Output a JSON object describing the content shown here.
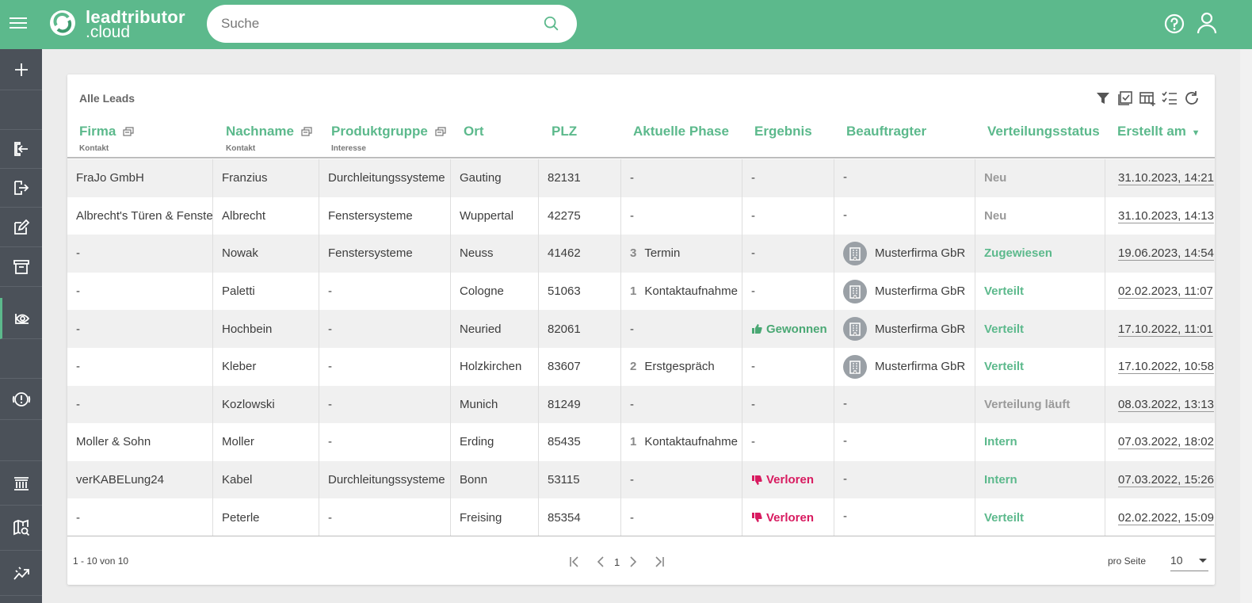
{
  "header": {
    "logo_name": "leadtributor",
    "logo_sub": ".cloud",
    "search_placeholder": "Suche"
  },
  "sidebar": {
    "items": [
      {
        "icon": "plus-icon"
      },
      {
        "icon": "login-icon"
      },
      {
        "icon": "logout-icon"
      },
      {
        "icon": "edit-icon"
      },
      {
        "icon": "archive-icon"
      },
      {
        "icon": "eye-icon",
        "active": true
      },
      {
        "icon": "alert-icon"
      },
      {
        "icon": "bank-icon"
      },
      {
        "icon": "map-search-icon"
      },
      {
        "icon": "chart-line-icon"
      }
    ]
  },
  "table": {
    "title": "Alle Leads",
    "columns": [
      {
        "label": "Firma",
        "sub": "Kontakt"
      },
      {
        "label": "Nachname",
        "sub": "Kontakt"
      },
      {
        "label": "Produktgruppe",
        "sub": "Interesse"
      },
      {
        "label": "Ort"
      },
      {
        "label": "PLZ"
      },
      {
        "label": "Aktuelle Phase"
      },
      {
        "label": "Ergebnis"
      },
      {
        "label": "Beauftragter"
      },
      {
        "label": "Verteilungsstatus"
      },
      {
        "label": "Erstellt am"
      }
    ],
    "rows": [
      {
        "firma": "FraJo GmbH",
        "nachname": "Franzius",
        "produkt": "Durchleitungssysteme",
        "ort": "Gauting",
        "plz": "82131",
        "phase_num": "",
        "phase": "-",
        "ergebnis": "-",
        "ergebnis_type": "none",
        "beauftragter": "-",
        "status": "Neu",
        "status_color": "gray",
        "erstellt": "31.10.2023, 14:21"
      },
      {
        "firma": "Albrecht's Türen & Fenster",
        "nachname": "Albrecht",
        "produkt": "Fenstersysteme",
        "ort": "Wuppertal",
        "plz": "42275",
        "phase_num": "",
        "phase": "-",
        "ergebnis": "-",
        "ergebnis_type": "none",
        "beauftragter": "-",
        "status": "Neu",
        "status_color": "gray",
        "erstellt": "31.10.2023, 14:13"
      },
      {
        "firma": "-",
        "nachname": "Nowak",
        "produkt": "Fenstersysteme",
        "ort": "Neuss",
        "plz": "41462",
        "phase_num": "3",
        "phase": "Termin",
        "ergebnis": "-",
        "ergebnis_type": "none",
        "beauftragter": "Musterfirma GbR",
        "status": "Zugewiesen",
        "status_color": "green",
        "erstellt": "19.06.2023, 14:54"
      },
      {
        "firma": "-",
        "nachname": "Paletti",
        "produkt": "-",
        "ort": "Cologne",
        "plz": "51063",
        "phase_num": "1",
        "phase": "Kontaktaufnahme",
        "ergebnis": "-",
        "ergebnis_type": "none",
        "beauftragter": "Musterfirma GbR",
        "status": "Verteilt",
        "status_color": "green",
        "erstellt": "02.02.2023, 11:07"
      },
      {
        "firma": "-",
        "nachname": "Hochbein",
        "produkt": "-",
        "ort": "Neuried",
        "plz": "82061",
        "phase_num": "",
        "phase": "-",
        "ergebnis": "Gewonnen",
        "ergebnis_type": "won",
        "beauftragter": "Musterfirma GbR",
        "status": "Verteilt",
        "status_color": "green",
        "erstellt": "17.10.2022, 11:01"
      },
      {
        "firma": "-",
        "nachname": "Kleber",
        "produkt": "-",
        "ort": "Holzkirchen",
        "plz": "83607",
        "phase_num": "2",
        "phase": "Erstgespräch",
        "ergebnis": "-",
        "ergebnis_type": "none",
        "beauftragter": "Musterfirma GbR",
        "status": "Verteilt",
        "status_color": "green",
        "erstellt": "17.10.2022, 10:58"
      },
      {
        "firma": "-",
        "nachname": "Kozlowski",
        "produkt": "-",
        "ort": "Munich",
        "plz": "81249",
        "phase_num": "",
        "phase": "-",
        "ergebnis": "-",
        "ergebnis_type": "none",
        "beauftragter": "-",
        "status": "Verteilung läuft",
        "status_color": "gray",
        "erstellt": "08.03.2022, 13:13"
      },
      {
        "firma": "Moller & Sohn",
        "nachname": "Moller",
        "produkt": "-",
        "ort": "Erding",
        "plz": "85435",
        "phase_num": "1",
        "phase": "Kontaktaufnahme",
        "ergebnis": "-",
        "ergebnis_type": "none",
        "beauftragter": "-",
        "status": "Intern",
        "status_color": "green",
        "erstellt": "07.03.2022, 18:02"
      },
      {
        "firma": "verKABELung24",
        "nachname": "Kabel",
        "produkt": "Durchleitungssysteme",
        "ort": "Bonn",
        "plz": "53115",
        "phase_num": "",
        "phase": "-",
        "ergebnis": "Verloren",
        "ergebnis_type": "lost",
        "beauftragter": "-",
        "status": "Intern",
        "status_color": "green",
        "erstellt": "07.03.2022, 15:26"
      },
      {
        "firma": "-",
        "nachname": "Peterle",
        "produkt": "-",
        "ort": "Freising",
        "plz": "85354",
        "phase_num": "",
        "phase": "-",
        "ergebnis": "Verloren",
        "ergebnis_type": "lost",
        "beauftragter": "-",
        "status": "Verteilt",
        "status_color": "green",
        "erstellt": "02.02.2022, 15:09"
      }
    ],
    "footer": {
      "range": "1 - 10 von 10",
      "page": "1",
      "per_page_label": "pro Seite",
      "per_page": "10"
    }
  },
  "colors": {
    "brand": "#5cb98c",
    "sidebar": "#4b5159",
    "lost": "#d81b60",
    "won": "#4aa874"
  }
}
